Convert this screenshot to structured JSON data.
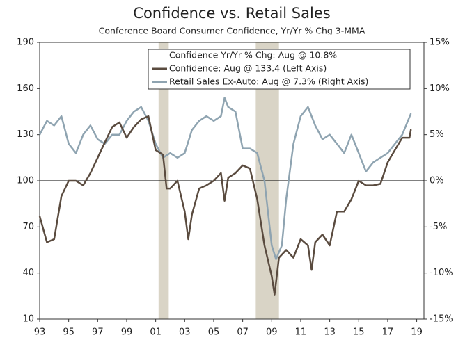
{
  "chart_data": {
    "type": "line",
    "title": "Confidence vs. Retail Sales",
    "subtitle": "Conference Board Consumer Confidence, Yr/Yr % Chg 3-MMA",
    "legend_title": "Confidence Yr/Yr % Chg: Aug @ 10.8%",
    "xlim": [
      1993,
      2019.5
    ],
    "xticks": [
      {
        "value": 1993,
        "label": "93"
      },
      {
        "value": 1995,
        "label": "95"
      },
      {
        "value": 1997,
        "label": "97"
      },
      {
        "value": 1999,
        "label": "99"
      },
      {
        "value": 2001,
        "label": "01"
      },
      {
        "value": 2003,
        "label": "03"
      },
      {
        "value": 2005,
        "label": "05"
      },
      {
        "value": 2007,
        "label": "07"
      },
      {
        "value": 2009,
        "label": "09"
      },
      {
        "value": 2011,
        "label": "11"
      },
      {
        "value": 2013,
        "label": "13"
      },
      {
        "value": 2015,
        "label": "15"
      },
      {
        "value": 2017,
        "label": "17"
      },
      {
        "value": 2019,
        "label": "19"
      }
    ],
    "ylim": [
      10,
      190
    ],
    "yticks": [
      10,
      40,
      70,
      100,
      130,
      160,
      190
    ],
    "y2lim": [
      -15,
      15
    ],
    "y2ticks": [
      {
        "value": -15,
        "label": "-15%"
      },
      {
        "value": -10,
        "label": "-10%"
      },
      {
        "value": -5,
        "label": "-5%"
      },
      {
        "value": 0,
        "label": "0%"
      },
      {
        "value": 5,
        "label": "5%"
      },
      {
        "value": 10,
        "label": "10%"
      },
      {
        "value": 15,
        "label": "15%"
      }
    ],
    "reference_line": 100,
    "shaded_regions": [
      {
        "start": 2001.2,
        "end": 2001.9
      },
      {
        "start": 2007.9,
        "end": 2009.5
      }
    ],
    "shade_color": "#d9d4c6",
    "series": [
      {
        "name": "Confidence: Aug @ 133.4 (Left Axis)",
        "color": "#5a4b3f",
        "x": [
          1993.0,
          1993.5,
          1994.0,
          1994.5,
          1995.0,
          1995.5,
          1996.0,
          1996.5,
          1997.0,
          1997.5,
          1998.0,
          1998.5,
          1999.0,
          1999.5,
          2000.0,
          2000.5,
          2001.0,
          2001.5,
          2001.75,
          2002.0,
          2002.5,
          2003.0,
          2003.25,
          2003.5,
          2004.0,
          2004.5,
          2005.0,
          2005.5,
          2005.75,
          2006.0,
          2006.5,
          2007.0,
          2007.5,
          2008.0,
          2008.5,
          2009.0,
          2009.2,
          2009.5,
          2010.0,
          2010.5,
          2011.0,
          2011.5,
          2011.75,
          2012.0,
          2012.5,
          2013.0,
          2013.5,
          2014.0,
          2014.5,
          2015.0,
          2015.5,
          2016.0,
          2016.5,
          2017.0,
          2017.5,
          2018.0,
          2018.5,
          2018.6
        ],
        "values": [
          77,
          60,
          62,
          90,
          100,
          100,
          97,
          105,
          115,
          125,
          135,
          138,
          128,
          135,
          140,
          142,
          120,
          117,
          95,
          95,
          100,
          80,
          62,
          78,
          95,
          97,
          100,
          105,
          87,
          102,
          105,
          110,
          108,
          88,
          58,
          38,
          26,
          50,
          55,
          50,
          62,
          58,
          42,
          60,
          65,
          58,
          80,
          80,
          88,
          100,
          97,
          97,
          98,
          112,
          120,
          128,
          128,
          133.4
        ]
      },
      {
        "name": "Retail Sales Ex-Auto: Aug @ 7.3% (Right Axis)",
        "color": "#8fa4b1",
        "axis": "y2",
        "x": [
          1993.0,
          1993.5,
          1994.0,
          1994.5,
          1995.0,
          1995.5,
          1996.0,
          1996.5,
          1997.0,
          1997.5,
          1998.0,
          1998.5,
          1999.0,
          1999.5,
          2000.0,
          2000.5,
          2001.0,
          2001.5,
          2002.0,
          2002.5,
          2003.0,
          2003.5,
          2004.0,
          2004.5,
          2005.0,
          2005.5,
          2005.75,
          2006.0,
          2006.5,
          2007.0,
          2007.5,
          2008.0,
          2008.5,
          2009.0,
          2009.3,
          2009.7,
          2010.0,
          2010.5,
          2011.0,
          2011.5,
          2012.0,
          2012.5,
          2013.0,
          2013.5,
          2014.0,
          2014.5,
          2015.0,
          2015.5,
          2016.0,
          2016.5,
          2017.0,
          2017.5,
          2018.0,
          2018.6
        ],
        "values": [
          5,
          6.5,
          6,
          7,
          4,
          3,
          5,
          6,
          4.5,
          4,
          5,
          5,
          6.5,
          7.5,
          8,
          6.5,
          4,
          2.5,
          3,
          2.5,
          3,
          5.5,
          6.5,
          7,
          6.5,
          7,
          9,
          8,
          7.5,
          3.5,
          3.5,
          3,
          0,
          -7,
          -8.5,
          -7,
          -2,
          4,
          7,
          8,
          6,
          4.5,
          5,
          4,
          3,
          5,
          3,
          1,
          2,
          2.5,
          3,
          4,
          5,
          7.3
        ]
      }
    ]
  }
}
